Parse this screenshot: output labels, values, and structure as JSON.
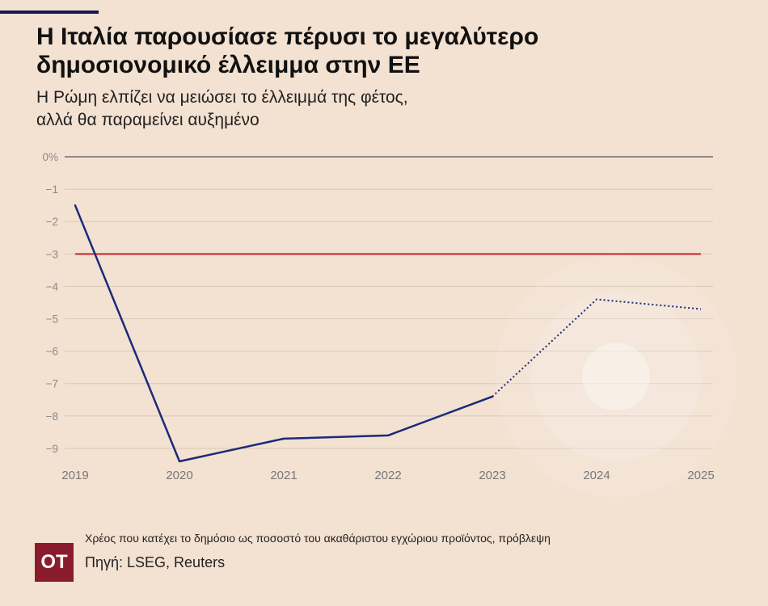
{
  "colors": {
    "background": "#f3e1d1",
    "accent_bar": "#14165e",
    "series": "#1c2a78",
    "reference_line": "#c4262e",
    "zero_line": "#555555",
    "gridline": "#d8c8bb",
    "tick_label": "#8a8a8a",
    "x_label": "#777777",
    "logo": "#8a1b2d"
  },
  "chart_data": {
    "type": "line",
    "title": [
      "Η Ιταλία παρουσίασε πέρυσι το μεγαλύτερο",
      "δημοσιονομικό έλλειμμα στην ΕΕ"
    ],
    "subtitle": [
      "Η Ρώμη ελπίζει να μειώσει το έλλειμμά της φέτος,",
      "αλλά θα παραμείνει αυξημένο"
    ],
    "xlabel": "",
    "ylabel": "",
    "categories": [
      "2019",
      "2020",
      "2021",
      "2022",
      "2023",
      "2024",
      "2025"
    ],
    "series": [
      {
        "values": [
          -1.5,
          -9.4,
          -8.7,
          -8.6,
          -7.4,
          -4.4,
          -4.7
        ],
        "dotted_from": "2023"
      }
    ],
    "reference_line": {
      "value": -3
    },
    "y_ticks": [
      0,
      -1,
      -2,
      -3,
      -4,
      -5,
      -6,
      -7,
      -8,
      -9
    ],
    "y_tick_labels": [
      "0%",
      "−1",
      "−2",
      "−3",
      "−4",
      "−5",
      "−6",
      "−7",
      "−8",
      "−9"
    ],
    "ylim": [
      -9.5,
      0
    ],
    "grid": true,
    "legend": "none"
  },
  "footer": {
    "note": "Χρέος που κατέχει το δημόσιο ως ποσοστό του ακαθάριστου εγχώριου προϊόντος, πρόβλεψη",
    "source": "Πηγή: LSEG, Reuters",
    "logo": "OT"
  }
}
